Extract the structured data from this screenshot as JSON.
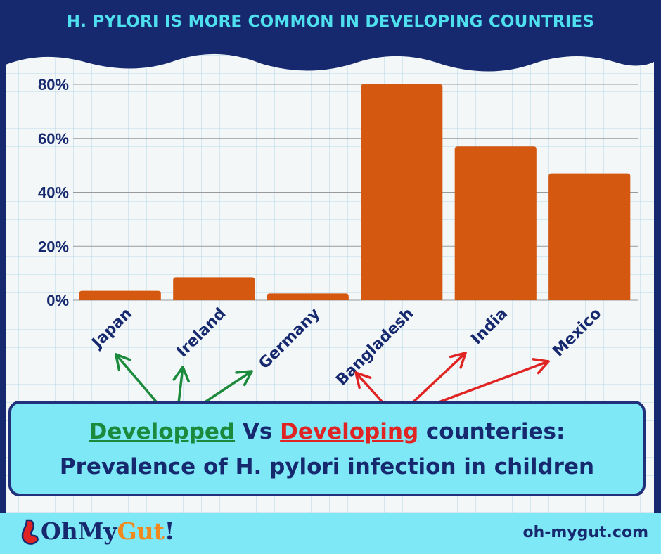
{
  "header": {
    "title": "H. PYLORI IS MORE COMMON IN DEVELOPING COUNTRIES"
  },
  "chart_data": {
    "type": "bar",
    "title": "H. PYLORI IS MORE COMMON IN DEVELOPING COUNTRIES",
    "categories": [
      "Japan",
      "Ireland",
      "Germany",
      "Bangladesh",
      "India",
      "Mexico"
    ],
    "values": [
      3.5,
      8.5,
      2.5,
      80,
      57,
      47
    ],
    "ylim": [
      0,
      80
    ],
    "yticks": [
      "0%",
      "20%",
      "40%",
      "60%",
      "80%"
    ],
    "ytick_values": [
      0,
      20,
      40,
      60,
      80
    ],
    "xlabel": "",
    "ylabel": "",
    "bar_color": "#d4580f",
    "grid": true,
    "groups": [
      {
        "name": "Developped",
        "members": [
          "Japan",
          "Ireland",
          "Germany"
        ],
        "color": "#1b8a3c"
      },
      {
        "name": "Developing",
        "members": [
          "Bangladesh",
          "India",
          "Mexico"
        ],
        "color": "#e02424"
      }
    ]
  },
  "caption": {
    "developed": "Developped",
    "vs": " Vs ",
    "developing": "Developing",
    "rest1": " counteries:",
    "line2": "Prevalence of H. pylori infection in children"
  },
  "footer": {
    "logo_oh": "Oh",
    "logo_my": "My",
    "logo_gut": "Gut",
    "logo_bang": "!",
    "url": "oh-mygut.com"
  },
  "colors": {
    "navy": "#16296e",
    "cyan": "#7fe8f7",
    "title": "#4fe0f0",
    "bar": "#d4580f",
    "green": "#1b8a3c",
    "red": "#e02424"
  }
}
